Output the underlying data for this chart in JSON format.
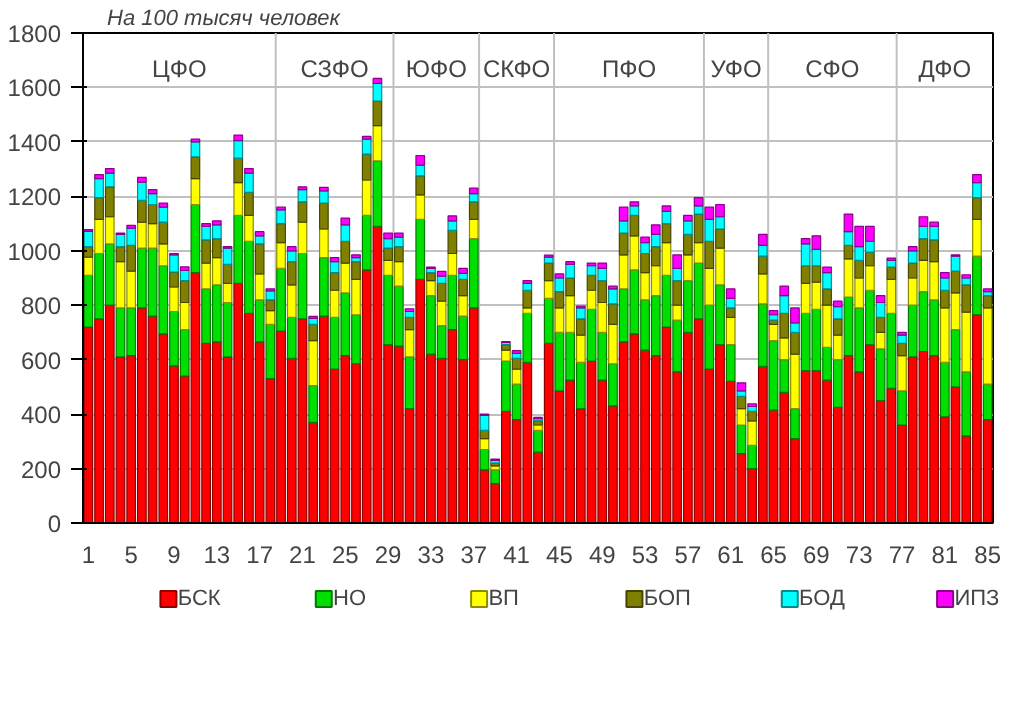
{
  "chart_data": {
    "type": "bar",
    "stacked": true,
    "title": "На 100 тысяч человек",
    "x": [
      1,
      2,
      3,
      4,
      5,
      6,
      7,
      8,
      9,
      10,
      11,
      12,
      13,
      14,
      15,
      16,
      17,
      18,
      19,
      20,
      21,
      22,
      23,
      24,
      25,
      26,
      27,
      28,
      29,
      30,
      31,
      32,
      33,
      34,
      35,
      36,
      37,
      38,
      39,
      40,
      41,
      42,
      43,
      44,
      45,
      46,
      47,
      48,
      49,
      50,
      51,
      52,
      53,
      54,
      55,
      56,
      57,
      58,
      59,
      60,
      61,
      62,
      63,
      64,
      65,
      66,
      67,
      68,
      69,
      70,
      71,
      72,
      73,
      74,
      75,
      76,
      77,
      78,
      79,
      80,
      81,
      82,
      83,
      84,
      85
    ],
    "xlim": [
      0.5,
      85.5
    ],
    "xticks": [
      1,
      5,
      9,
      13,
      17,
      21,
      25,
      29,
      33,
      37,
      41,
      45,
      49,
      53,
      57,
      61,
      65,
      69,
      73,
      77,
      81,
      85
    ],
    "ylim": [
      0,
      1800
    ],
    "yticks": [
      0,
      200,
      400,
      600,
      800,
      1000,
      1200,
      1400,
      1600,
      1800
    ],
    "grid": "y",
    "legend": "bottom",
    "series": [
      {
        "name": "БСК",
        "color": "#ff0000",
        "values": [
          720,
          750,
          800,
          610,
          615,
          790,
          760,
          695,
          577,
          540,
          920,
          660,
          665,
          610,
          880,
          770,
          665,
          530,
          705,
          605,
          750,
          370,
          760,
          565,
          615,
          585,
          930,
          1090,
          655,
          650,
          420,
          895,
          620,
          605,
          710,
          600,
          790,
          195,
          145,
          410,
          380,
          590,
          260,
          660,
          485,
          525,
          420,
          595,
          525,
          430,
          665,
          695,
          635,
          615,
          720,
          555,
          700,
          750,
          565,
          655,
          520,
          255,
          200,
          575,
          415,
          480,
          310,
          560,
          560,
          525,
          425,
          615,
          555,
          655,
          450,
          495,
          360,
          610,
          630,
          615,
          390,
          500,
          320,
          765,
          380
        ]
      },
      {
        "name": "НО",
        "color": "#00e000",
        "values": [
          190,
          240,
          225,
          180,
          175,
          220,
          250,
          250,
          200,
          170,
          250,
          200,
          210,
          200,
          250,
          265,
          155,
          200,
          230,
          150,
          240,
          135,
          215,
          190,
          230,
          180,
          200,
          240,
          255,
          220,
          190,
          220,
          215,
          120,
          200,
          160,
          255,
          75,
          50,
          185,
          130,
          180,
          80,
          165,
          215,
          175,
          170,
          190,
          175,
          155,
          195,
          235,
          185,
          220,
          190,
          190,
          190,
          205,
          235,
          220,
          135,
          105,
          85,
          230,
          255,
          120,
          110,
          210,
          225,
          120,
          175,
          215,
          235,
          200,
          190,
          275,
          125,
          190,
          220,
          205,
          200,
          210,
          235,
          215,
          130
        ]
      },
      {
        "name": "ВП",
        "color": "#ffff00",
        "values": [
          67,
          125,
          100,
          170,
          135,
          95,
          90,
          80,
          90,
          100,
          95,
          95,
          100,
          70,
          120,
          95,
          95,
          50,
          95,
          120,
          115,
          165,
          105,
          100,
          110,
          130,
          130,
          130,
          55,
          90,
          100,
          90,
          55,
          90,
          80,
          75,
          70,
          40,
          15,
          40,
          55,
          20,
          20,
          65,
          90,
          135,
          100,
          70,
          110,
          145,
          125,
          125,
          100,
          110,
          120,
          55,
          95,
          75,
          135,
          135,
          100,
          60,
          90,
          110,
          60,
          80,
          200,
          110,
          100,
          155,
          90,
          140,
          110,
          90,
          60,
          125,
          130,
          100,
          115,
          140,
          200,
          135,
          220,
          135,
          280
        ]
      },
      {
        "name": "БОП",
        "color": "#808000",
        "values": [
          38,
          80,
          110,
          55,
          95,
          80,
          70,
          80,
          55,
          80,
          80,
          85,
          70,
          70,
          90,
          85,
          110,
          40,
          70,
          85,
          75,
          60,
          95,
          65,
          80,
          65,
          95,
          90,
          45,
          55,
          45,
          70,
          30,
          65,
          85,
          60,
          65,
          30,
          10,
          20,
          40,
          65,
          15,
          65,
          60,
          65,
          60,
          55,
          80,
          75,
          80,
          75,
          70,
          70,
          70,
          90,
          75,
          105,
          100,
          70,
          35,
          45,
          35,
          65,
          15,
          90,
          80,
          65,
          60,
          60,
          60,
          50,
          65,
          50,
          55,
          45,
          45,
          55,
          80,
          80,
          65,
          80,
          100,
          80,
          45
        ]
      },
      {
        "name": "БОД",
        "color": "#00ffff",
        "values": [
          56,
          70,
          50,
          45,
          63,
          67,
          40,
          55,
          63,
          38,
          55,
          50,
          50,
          60,
          65,
          70,
          30,
          33,
          50,
          40,
          45,
          22,
          45,
          40,
          60,
          15,
          55,
          65,
          35,
          35,
          22,
          40,
          15,
          27,
          35,
          22,
          30,
          55,
          10,
          8,
          18,
          25,
          8,
          22,
          50,
          50,
          40,
          35,
          45,
          55,
          45,
          35,
          40,
          45,
          45,
          45,
          50,
          30,
          80,
          45,
          35,
          20,
          18,
          40,
          20,
          65,
          35,
          80,
          60,
          60,
          45,
          50,
          50,
          40,
          55,
          25,
          30,
          45,
          45,
          50,
          45,
          55,
          25,
          55,
          15
        ]
      },
      {
        "name": "ИПЗ",
        "color": "#ff00ff",
        "values": [
          7,
          15,
          17,
          5,
          10,
          18,
          15,
          15,
          5,
          13,
          10,
          10,
          15,
          5,
          20,
          17,
          15,
          7,
          10,
          15,
          10,
          7,
          13,
          15,
          25,
          10,
          10,
          18,
          20,
          15,
          10,
          35,
          5,
          17,
          18,
          18,
          20,
          5,
          5,
          3,
          10,
          10,
          5,
          7,
          15,
          10,
          7,
          10,
          20,
          10,
          50,
          15,
          20,
          35,
          20,
          50,
          20,
          30,
          45,
          45,
          35,
          30,
          10,
          40,
          15,
          35,
          55,
          20,
          50,
          20,
          20,
          65,
          75,
          55,
          25,
          8,
          10,
          15,
          35,
          15,
          20,
          5,
          12,
          30,
          10
        ]
      }
    ],
    "ref_lines": [
      {
        "axis": "x",
        "value": 18.5,
        "color": "#c0c0c0"
      },
      {
        "axis": "x",
        "value": 29.5,
        "color": "#c0c0c0"
      },
      {
        "axis": "x",
        "value": 37.5,
        "color": "#c0c0c0"
      },
      {
        "axis": "x",
        "value": 44.5,
        "color": "#c0c0c0"
      },
      {
        "axis": "x",
        "value": 58.5,
        "color": "#c0c0c0"
      },
      {
        "axis": "x",
        "value": 64.5,
        "color": "#c0c0c0"
      },
      {
        "axis": "x",
        "value": 76.5,
        "color": "#c0c0c0"
      }
    ],
    "annotations": [
      "ЦФО",
      "СЗФО",
      "ЮФО",
      "СКФО",
      "ПФО",
      "УФО",
      "СФО",
      "ДФО"
    ]
  }
}
